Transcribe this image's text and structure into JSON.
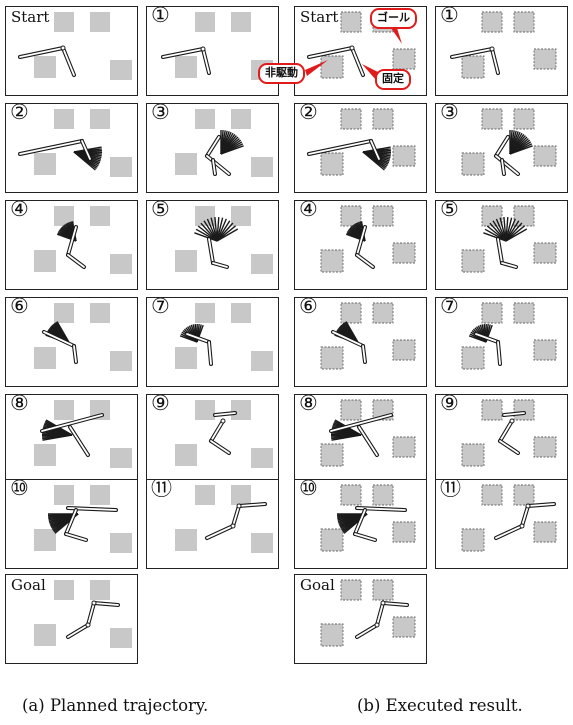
{
  "colors": {
    "obstacle_fill": "#c8c8c8",
    "obstacle_stroke": "#666666",
    "callout_red": "#e01b1b",
    "robot": "#1a1a1a"
  },
  "columns": {
    "planned": {
      "caption": "(a) Planned trajectory.",
      "panels": [
        {
          "label": "Start",
          "kind": "start"
        },
        {
          "label": "①",
          "kind": "s1"
        },
        {
          "label": "②",
          "kind": "s2"
        },
        {
          "label": "③",
          "kind": "s3"
        },
        {
          "label": "④",
          "kind": "s4"
        },
        {
          "label": "⑤",
          "kind": "s5"
        },
        {
          "label": "⑥",
          "kind": "s6"
        },
        {
          "label": "⑦",
          "kind": "s7"
        },
        {
          "label": "⑧",
          "kind": "s8"
        },
        {
          "label": "⑨",
          "kind": "s9"
        },
        {
          "label": "⑩",
          "kind": "s10"
        },
        {
          "label": "⑪",
          "kind": "s11"
        },
        {
          "label": "Goal",
          "kind": "goal"
        }
      ]
    },
    "executed": {
      "caption": "(b) Executed result.",
      "panels": [
        {
          "label": "Start",
          "kind": "start"
        },
        {
          "label": "①",
          "kind": "s1"
        },
        {
          "label": "②",
          "kind": "s2"
        },
        {
          "label": "③",
          "kind": "s3"
        },
        {
          "label": "④",
          "kind": "s4"
        },
        {
          "label": "⑤",
          "kind": "s5"
        },
        {
          "label": "⑥",
          "kind": "s6"
        },
        {
          "label": "⑦",
          "kind": "s7"
        },
        {
          "label": "⑧",
          "kind": "s8"
        },
        {
          "label": "⑨",
          "kind": "s9"
        },
        {
          "label": "⑩",
          "kind": "s10"
        },
        {
          "label": "⑪",
          "kind": "s11"
        },
        {
          "label": "Goal",
          "kind": "goal"
        }
      ]
    }
  },
  "callouts": {
    "goal": "ゴール",
    "unactuated": "非駆動",
    "fixed": "固定"
  }
}
